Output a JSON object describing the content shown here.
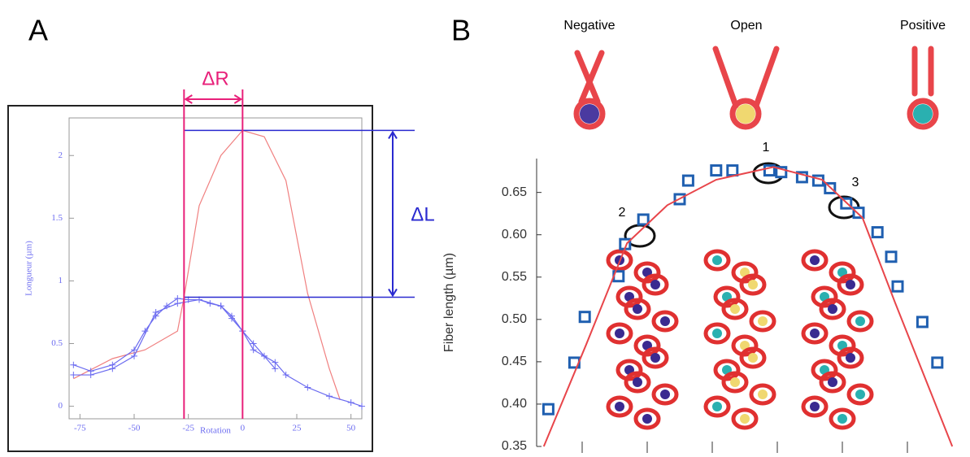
{
  "chart_data": [
    {
      "type": "line",
      "panel": "A",
      "x_label": "Rotation",
      "y_label": "Longueur (µm)",
      "xlim": [
        -80,
        55
      ],
      "ylim": [
        -0.1,
        2.3
      ],
      "xticks": [
        -75,
        -50,
        -25,
        0,
        25,
        50
      ],
      "yticks": [
        0,
        0.5,
        1,
        1.5,
        2
      ],
      "series": [
        {
          "color": "#f08080",
          "marker": "none",
          "x": [
            -78,
            -60,
            -45,
            -30,
            -27,
            -20,
            -10,
            0,
            10,
            20,
            30,
            40,
            45
          ],
          "values": [
            0.22,
            0.38,
            0.45,
            0.6,
            0.87,
            1.6,
            2.0,
            2.2,
            2.15,
            1.8,
            0.9,
            0.3,
            0.05
          ]
        },
        {
          "color": "#6b6bf0",
          "marker": "cross",
          "x": [
            -78,
            -70,
            -60,
            -50,
            -45,
            -40,
            -35,
            -30,
            -25,
            -20,
            -15,
            -10,
            -5,
            0,
            5,
            10,
            15,
            20,
            30,
            40,
            50,
            55
          ],
          "values": [
            0.33,
            0.28,
            0.33,
            0.45,
            0.6,
            0.72,
            0.8,
            0.86,
            0.85,
            0.85,
            0.82,
            0.8,
            0.72,
            0.6,
            0.5,
            0.4,
            0.35,
            0.25,
            0.15,
            0.08,
            0.03,
            0.0
          ]
        },
        {
          "color": "#6b6bf0",
          "marker": "cross",
          "x": [
            -78,
            -70,
            -60,
            -50,
            -40,
            -30,
            -20,
            -10,
            -5,
            0,
            5,
            10,
            15
          ],
          "values": [
            0.25,
            0.25,
            0.3,
            0.4,
            0.75,
            0.82,
            0.85,
            0.8,
            0.7,
            0.6,
            0.45,
            0.4,
            0.3
          ]
        }
      ],
      "vlines": [
        -27,
        0
      ],
      "vline_color": "#e8207a",
      "vline_annotation": "ΔR",
      "hlines": [
        2.2,
        0.87
      ],
      "hline_color": "#2a2ad0",
      "hline_annotation": "ΔL"
    },
    {
      "type": "scatter",
      "panel": "B",
      "y_label": "Fiber length (µm)",
      "xlim": [
        0.3,
        6.8
      ],
      "ylim": [
        0.35,
        0.69
      ],
      "xticks": [
        1,
        2,
        3,
        4,
        5,
        6
      ],
      "yticks": [
        0.35,
        {
          "value": 0.4,
          "label": "0.40"
        },
        0.45,
        {
          "value": 0.5,
          "label": "0.50"
        },
        0.55,
        {
          "value": 0.6,
          "label": "0.60"
        },
        0.65
      ],
      "series": [
        {
          "color": "#1f5fb0",
          "marker": "square",
          "x": [
            0.48,
            0.88,
            1.04,
            1.56,
            1.66,
            1.94,
            2.5,
            2.63,
            3.06,
            3.31,
            3.88,
            4.06,
            4.38,
            4.63,
            4.81,
            5.06,
            5.25,
            5.54,
            5.75,
            5.85,
            6.23,
            6.46
          ],
          "values": [
            0.394,
            0.449,
            0.503,
            0.551,
            0.589,
            0.618,
            0.642,
            0.664,
            0.676,
            0.676,
            0.676,
            0.674,
            0.668,
            0.664,
            0.655,
            0.637,
            0.626,
            0.603,
            0.574,
            0.539,
            0.497,
            0.449
          ]
        },
        {
          "color": "#e8454a",
          "marker": "none",
          "x": [
            0.41,
            1.06,
            1.69,
            2.31,
            3.06,
            3.94,
            4.69,
            5.31,
            5.81,
            6.69
          ],
          "values": [
            0.35,
            0.47,
            0.59,
            0.635,
            0.665,
            0.68,
            0.665,
            0.62,
            0.52,
            0.35
          ]
        }
      ],
      "states": [
        "Negative",
        "Open",
        "Positive"
      ],
      "circle_labels": [
        "1",
        "2",
        "3"
      ]
    }
  ]
}
